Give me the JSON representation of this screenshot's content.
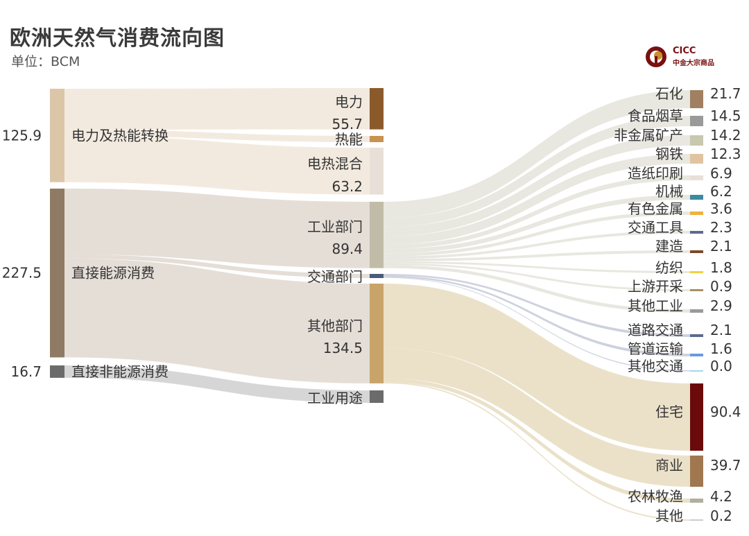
{
  "title": "欧洲天然气消费流向图",
  "unit": "单位：BCM",
  "logo": {
    "name": "CICC",
    "subtitle": "中金大宗商品"
  },
  "chart_data": {
    "type": "sankey",
    "unit": "BCM",
    "nodes": {
      "sources": [
        {
          "id": "s_power",
          "label": "电力及热能转换",
          "value": 125.9,
          "value_text": "125.9",
          "color": "#dcc6a8"
        },
        {
          "id": "s_direct",
          "label": "直接能源消费",
          "value": 227.5,
          "value_text": "227.5",
          "color": "#8f7b63"
        },
        {
          "id": "s_nonenergy",
          "label": "直接非能源消费",
          "value": 16.7,
          "value_text": "16.7",
          "color": "#6b6b6b"
        }
      ],
      "middle": [
        {
          "id": "m_elec",
          "label": "电力",
          "value": 55.7,
          "value_text": "55.7",
          "color": "#8b5a2b"
        },
        {
          "id": "m_heat",
          "label": "热能",
          "value": 7.0,
          "value_text": "",
          "color": "#c8924f"
        },
        {
          "id": "m_chp",
          "label": "电热混合",
          "value": 63.2,
          "value_text": "63.2",
          "color": "#e8e0d8"
        },
        {
          "id": "m_ind",
          "label": "工业部门",
          "value": 89.4,
          "value_text": "89.4",
          "color": "#c0bca8"
        },
        {
          "id": "m_trans",
          "label": "交通部门",
          "value": 3.7,
          "value_text": "",
          "color": "#4a5a7a"
        },
        {
          "id": "m_other",
          "label": "其他部门",
          "value": 134.5,
          "value_text": "134.5",
          "color": "#c9a46a"
        },
        {
          "id": "m_induse",
          "label": "工业用途",
          "value": 16.7,
          "value_text": "",
          "color": "#6b6b6b"
        }
      ],
      "targets": [
        {
          "id": "t1",
          "label": "石化",
          "value": 21.7,
          "value_text": "21.7",
          "color": "#a08060"
        },
        {
          "id": "t2",
          "label": "食品烟草",
          "value": 14.5,
          "value_text": "14.5",
          "color": "#9a9a9a"
        },
        {
          "id": "t3",
          "label": "非金属矿产",
          "value": 14.2,
          "value_text": "14.2",
          "color": "#c8c8b0"
        },
        {
          "id": "t4",
          "label": "钢铁",
          "value": 12.3,
          "value_text": "12.3",
          "color": "#e0c4a0"
        },
        {
          "id": "t5",
          "label": "造纸印刷",
          "value": 6.9,
          "value_text": "6.9",
          "color": "#e8e0d8"
        },
        {
          "id": "t6",
          "label": "机械",
          "value": 6.2,
          "value_text": "6.2",
          "color": "#3a8aa0"
        },
        {
          "id": "t7",
          "label": "有色金属",
          "value": 3.6,
          "value_text": "3.6",
          "color": "#f0b040"
        },
        {
          "id": "t8",
          "label": "交通工具",
          "value": 2.3,
          "value_text": "2.3",
          "color": "#5a6a90"
        },
        {
          "id": "t9",
          "label": "建造",
          "value": 2.1,
          "value_text": "2.1",
          "color": "#7a4a2a"
        },
        {
          "id": "t10",
          "label": "纺织",
          "value": 1.8,
          "value_text": "1.8",
          "color": "#f0d040"
        },
        {
          "id": "t11",
          "label": "上游开采",
          "value": 0.9,
          "value_text": "0.9",
          "color": "#a89060"
        },
        {
          "id": "t12",
          "label": "其他工业",
          "value": 2.9,
          "value_text": "2.9",
          "color": "#9a9a9a"
        },
        {
          "id": "t13",
          "label": "道路交通",
          "value": 2.1,
          "value_text": "2.1",
          "color": "#5a6a90"
        },
        {
          "id": "t14",
          "label": "管道运输",
          "value": 1.6,
          "value_text": "1.6",
          "color": "#6a9ae0"
        },
        {
          "id": "t15",
          "label": "其他交通",
          "value": 0.0,
          "value_text": "0.0",
          "color": "#a0d8f0"
        },
        {
          "id": "t16",
          "label": "住宅",
          "value": 90.4,
          "value_text": "90.4",
          "color": "#6b0a0a"
        },
        {
          "id": "t17",
          "label": "商业",
          "value": 39.7,
          "value_text": "39.7",
          "color": "#a07850"
        },
        {
          "id": "t18",
          "label": "农林牧渔",
          "value": 4.2,
          "value_text": "4.2",
          "color": "#b0b0a0"
        },
        {
          "id": "t19",
          "label": "其他",
          "value": 0.2,
          "value_text": "0.2",
          "color": "#cccccc"
        }
      ]
    },
    "links": [
      {
        "source": "s_power",
        "target": "m_elec",
        "value": 55.7
      },
      {
        "source": "s_power",
        "target": "m_heat",
        "value": 7.0
      },
      {
        "source": "s_power",
        "target": "m_chp",
        "value": 63.2
      },
      {
        "source": "s_direct",
        "target": "m_ind",
        "value": 89.4
      },
      {
        "source": "s_direct",
        "target": "m_trans",
        "value": 3.7
      },
      {
        "source": "s_direct",
        "target": "m_other",
        "value": 134.5
      },
      {
        "source": "s_nonenergy",
        "target": "m_induse",
        "value": 16.7
      },
      {
        "source": "m_ind",
        "target": "t1",
        "value": 21.7
      },
      {
        "source": "m_ind",
        "target": "t2",
        "value": 14.5
      },
      {
        "source": "m_ind",
        "target": "t3",
        "value": 14.2
      },
      {
        "source": "m_ind",
        "target": "t4",
        "value": 12.3
      },
      {
        "source": "m_ind",
        "target": "t5",
        "value": 6.9
      },
      {
        "source": "m_ind",
        "target": "t6",
        "value": 6.2
      },
      {
        "source": "m_ind",
        "target": "t7",
        "value": 3.6
      },
      {
        "source": "m_ind",
        "target": "t8",
        "value": 2.3
      },
      {
        "source": "m_ind",
        "target": "t9",
        "value": 2.1
      },
      {
        "source": "m_ind",
        "target": "t10",
        "value": 1.8
      },
      {
        "source": "m_ind",
        "target": "t11",
        "value": 0.9
      },
      {
        "source": "m_ind",
        "target": "t12",
        "value": 2.9
      },
      {
        "source": "m_trans",
        "target": "t13",
        "value": 2.1
      },
      {
        "source": "m_trans",
        "target": "t14",
        "value": 1.6
      },
      {
        "source": "m_trans",
        "target": "t15",
        "value": 0.0
      },
      {
        "source": "m_other",
        "target": "t16",
        "value": 90.4
      },
      {
        "source": "m_other",
        "target": "t17",
        "value": 39.7
      },
      {
        "source": "m_other",
        "target": "t18",
        "value": 4.2
      },
      {
        "source": "m_other",
        "target": "t19",
        "value": 0.2
      }
    ]
  }
}
